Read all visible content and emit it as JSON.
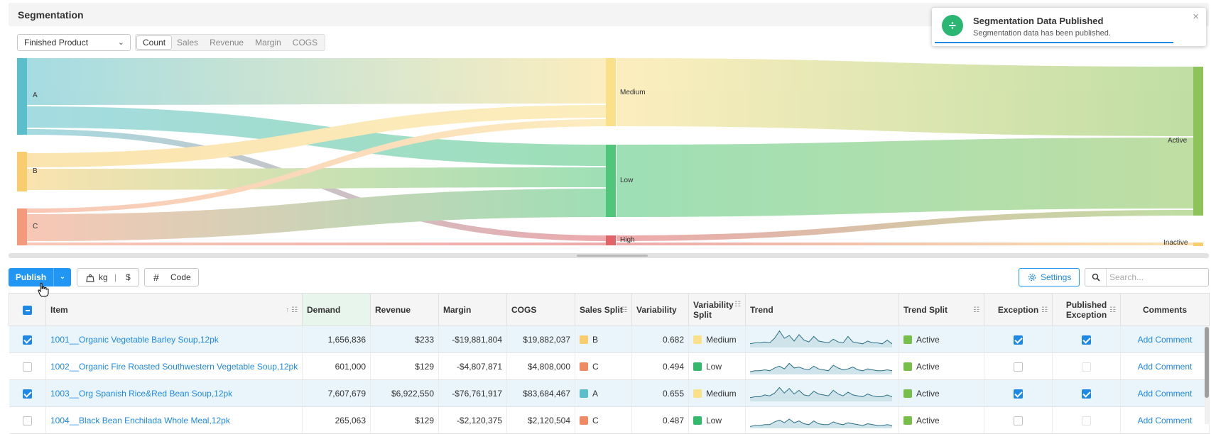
{
  "page": {
    "title": "Segmentation"
  },
  "toolbar": {
    "product_select": "Finished Product",
    "metrics": [
      "Count",
      "Sales",
      "Revenue",
      "Margin",
      "COGS"
    ],
    "active_metric": "Count"
  },
  "sankey": {
    "nodes": {
      "A": "A",
      "B": "B",
      "C": "C",
      "Medium": "Medium",
      "Low": "Low",
      "High": "High",
      "Active": "Active",
      "Inactive": "Inactive"
    },
    "colors": {
      "A": "#5bbfcb",
      "B": "#f7cd6e",
      "C": "#f39a7c",
      "Medium": "#fbe08a",
      "Low": "#4fc67a",
      "High": "#e06468",
      "Active": "#8cc45a",
      "Inactive": "#f7cd6e"
    }
  },
  "toast": {
    "title": "Segmentation Data Published",
    "message": "Segmentation data has been published."
  },
  "actions": {
    "publish_label": "Publish",
    "unit_kg": "kg",
    "unit_sep": "|",
    "unit_currency": "$",
    "code_label": "Code",
    "settings_label": "Settings",
    "search_placeholder": "Search..."
  },
  "table": {
    "headers": {
      "item": "Item",
      "demand": "Demand",
      "revenue": "Revenue",
      "margin": "Margin",
      "cogs": "COGS",
      "sales_split": "Sales Split",
      "variability": "Variability",
      "variability_split_1": "Variability",
      "variability_split_2": "Split",
      "trend": "Trend",
      "trend_split": "Trend Split",
      "exception": "Exception",
      "published_exception_1": "Published",
      "published_exception_2": "Exception",
      "comments": "Comments"
    },
    "rows": [
      {
        "checked": true,
        "item": "1001__Organic Vegetable Barley Soup,12pk",
        "demand": "1,656,836",
        "revenue": "$233",
        "margin": "-$19,881,804",
        "cogs": "$19,882,037",
        "sales_split": "B",
        "sales_color": "#f7cd6e",
        "variability": "0.682",
        "variability_split": "Medium",
        "var_color": "#fbe08a",
        "trend_split": "Active",
        "trend_color": "#78be4a",
        "exception": true,
        "published_exception": true,
        "comment": "Add Comment"
      },
      {
        "checked": false,
        "item": "1002__Organic Fire Roasted Southwestern Vegetable Soup,12pk",
        "demand": "601,000",
        "revenue": "$129",
        "margin": "-$4,807,871",
        "cogs": "$4,808,000",
        "sales_split": "C",
        "sales_color": "#f08a63",
        "variability": "0.494",
        "variability_split": "Low",
        "var_color": "#33b96b",
        "trend_split": "Active",
        "trend_color": "#78be4a",
        "exception": false,
        "published_exception": false,
        "comment": "Add Comment"
      },
      {
        "checked": true,
        "item": "1003__Org Spanish Rice&Red Bean Soup,12pk",
        "demand": "7,607,679",
        "revenue": "$6,922,550",
        "margin": "-$76,761,917",
        "cogs": "$83,684,467",
        "sales_split": "A",
        "sales_color": "#5bbfcb",
        "variability": "0.655",
        "variability_split": "Medium",
        "var_color": "#fbe08a",
        "trend_split": "Active",
        "trend_color": "#78be4a",
        "exception": true,
        "published_exception": true,
        "comment": "Add Comment"
      },
      {
        "checked": false,
        "item": "1004__Black Bean Enchilada Whole Meal,12pk",
        "demand": "265,063",
        "revenue": "$129",
        "margin": "-$2,120,375",
        "cogs": "$2,120,504",
        "sales_split": "C",
        "sales_color": "#f08a63",
        "variability": "0.487",
        "variability_split": "Low",
        "var_color": "#33b96b",
        "trend_split": "Active",
        "trend_color": "#78be4a",
        "exception": false,
        "published_exception": false,
        "comment": "Add Comment"
      }
    ]
  }
}
